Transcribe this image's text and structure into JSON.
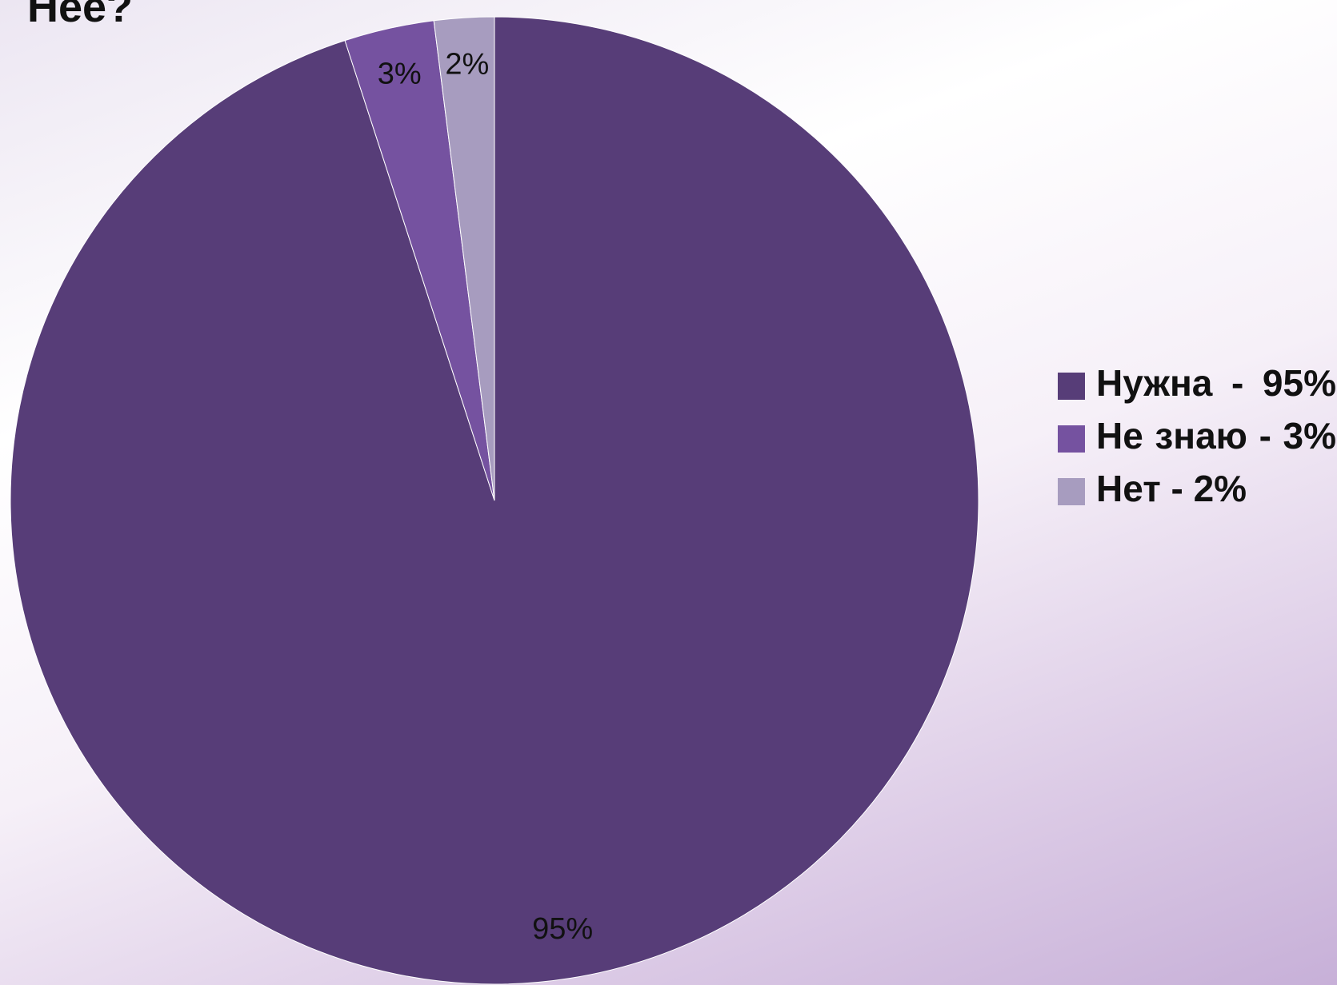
{
  "chart_data": {
    "type": "pie",
    "title": "Нее?",
    "categories": [
      "Нужна - 95%",
      "Не знаю - 3%",
      "Нет - 2%"
    ],
    "values": [
      95,
      3,
      2
    ],
    "value_labels": [
      "95%",
      "3%",
      "2%"
    ],
    "colors": [
      "#573d78",
      "#7552a0",
      "#a79cbf"
    ]
  }
}
